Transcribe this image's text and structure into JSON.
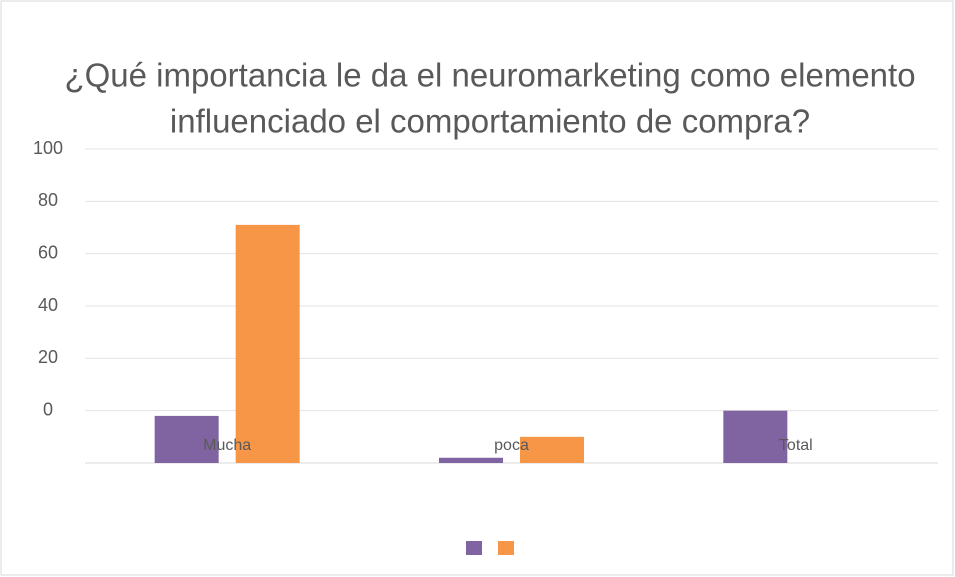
{
  "chart_data": {
    "type": "bar",
    "title": [
      "¿Qué importancia le da el neuromarketing como elemento",
      "influenciado el comportamiento de compra?"
    ],
    "categories": [
      "Mucha",
      "poca",
      "Total"
    ],
    "series": [
      {
        "color": "#8064a2",
        "values": [
          -2,
          -18,
          0
        ]
      },
      {
        "color": "#f79646",
        "values": [
          71,
          -10,
          null
        ]
      }
    ],
    "ylim": [
      -20,
      100
    ],
    "yticks": [
      0,
      20,
      40,
      60,
      80,
      100
    ],
    "grid": true,
    "legend": "bottom"
  }
}
